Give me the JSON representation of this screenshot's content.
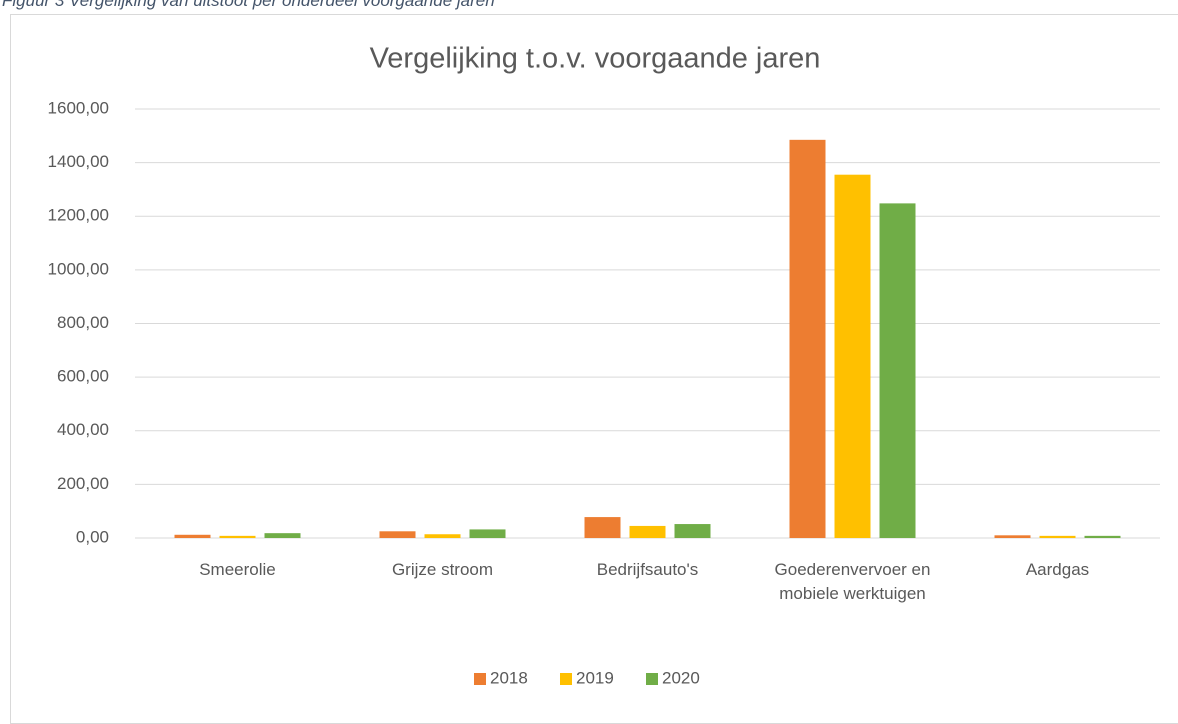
{
  "caption": "Figuur 3 Vergelijking van uitstoot per onderdeel voorgaande jaren",
  "chart_data": {
    "type": "bar",
    "title": "Vergelijking t.o.v. voorgaande jaren",
    "categories": [
      "Smeerolie",
      "Grijze stroom",
      "Bedrijfsauto's",
      "Goederenvervoer en mobiele werktuigen",
      "Aardgas"
    ],
    "series": [
      {
        "name": "2018",
        "color": "#ed7d31",
        "values": [
          12,
          25,
          78,
          1485,
          10
        ]
      },
      {
        "name": "2019",
        "color": "#ffc000",
        "values": [
          8,
          14,
          45,
          1355,
          8
        ]
      },
      {
        "name": "2020",
        "color": "#70ad47",
        "values": [
          18,
          32,
          52,
          1248,
          8
        ]
      }
    ],
    "ylim": [
      0,
      1600
    ],
    "yticks": [
      {
        "value": 0,
        "label": "0,00"
      },
      {
        "value": 200,
        "label": "200,00"
      },
      {
        "value": 400,
        "label": "400,00"
      },
      {
        "value": 600,
        "label": "600,00"
      },
      {
        "value": 800,
        "label": "800,00"
      },
      {
        "value": 1000,
        "label": "1000,00"
      },
      {
        "value": 1200,
        "label": "1200,00"
      },
      {
        "value": 1400,
        "label": "1400,00"
      },
      {
        "value": 1600,
        "label": "1600,00"
      }
    ],
    "grid": true,
    "legend": "bottom"
  }
}
